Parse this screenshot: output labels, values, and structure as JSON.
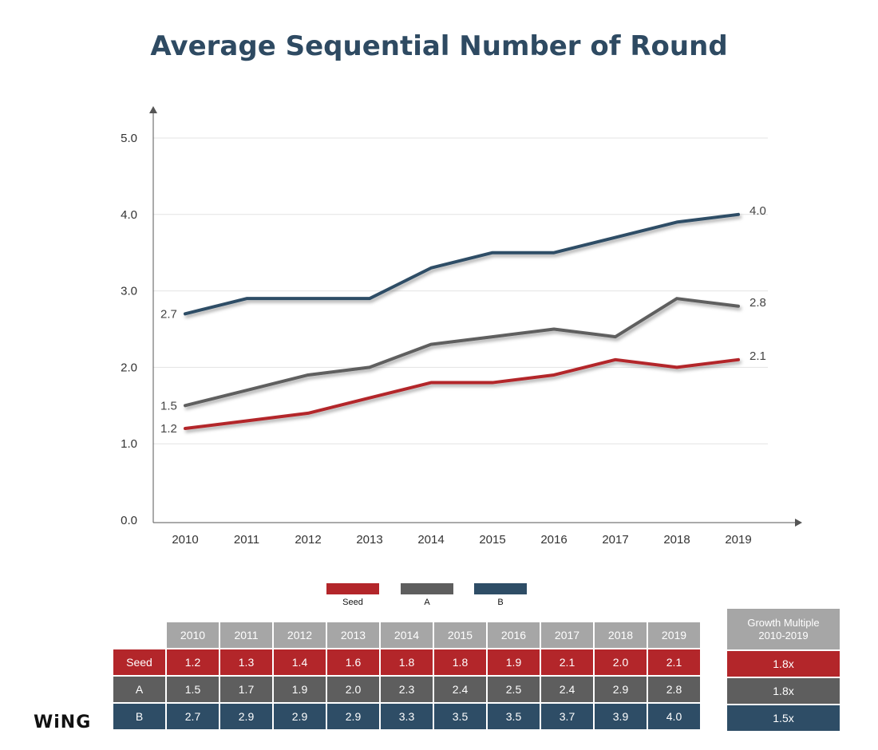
{
  "title": "Average Sequential Number of Round",
  "chart_data": {
    "type": "line",
    "title": "Average Sequential Number of Round",
    "x": [
      "2010",
      "2011",
      "2012",
      "2013",
      "2014",
      "2015",
      "2016",
      "2017",
      "2018",
      "2019"
    ],
    "y_ticks": [
      "0.0",
      "1.0",
      "2.0",
      "3.0",
      "4.0",
      "5.0"
    ],
    "ylim": [
      0,
      5
    ],
    "grid": true,
    "legend_position": "bottom",
    "series": [
      {
        "name": "Seed",
        "color": "#b3262a",
        "values": [
          1.2,
          1.3,
          1.4,
          1.6,
          1.8,
          1.8,
          1.9,
          2.1,
          2.0,
          2.1
        ],
        "start_label": "1.2",
        "end_label": "2.1"
      },
      {
        "name": "A",
        "color": "#5e5e5e",
        "values": [
          1.5,
          1.7,
          1.9,
          2.0,
          2.3,
          2.4,
          2.5,
          2.4,
          2.9,
          2.8
        ],
        "start_label": "1.5",
        "end_label": "2.8"
      },
      {
        "name": "B",
        "color": "#2e4d66",
        "values": [
          2.7,
          2.9,
          2.9,
          2.9,
          3.3,
          3.5,
          3.5,
          3.7,
          3.9,
          4.0
        ],
        "start_label": "2.7",
        "end_label": "4.0"
      }
    ]
  },
  "legend": [
    {
      "label": "Seed",
      "color": "#b3262a"
    },
    {
      "label": "A",
      "color": "#5e5e5e"
    },
    {
      "label": "B",
      "color": "#2e4d66"
    }
  ],
  "table": {
    "years": [
      "2010",
      "2011",
      "2012",
      "2013",
      "2014",
      "2015",
      "2016",
      "2017",
      "2018",
      "2019"
    ],
    "rows": [
      {
        "label": "Seed",
        "values": [
          "1.2",
          "1.3",
          "1.4",
          "1.6",
          "1.8",
          "1.8",
          "1.9",
          "2.1",
          "2.0",
          "2.1"
        ]
      },
      {
        "label": "A",
        "values": [
          "1.5",
          "1.7",
          "1.9",
          "2.0",
          "2.3",
          "2.4",
          "2.5",
          "2.4",
          "2.9",
          "2.8"
        ]
      },
      {
        "label": "B",
        "values": [
          "2.7",
          "2.9",
          "2.9",
          "2.9",
          "3.3",
          "3.5",
          "3.5",
          "3.7",
          "3.9",
          "4.0"
        ]
      }
    ]
  },
  "growth": {
    "header_line1": "Growth Multiple",
    "header_line2": "2010-2019",
    "values": [
      "1.8x",
      "1.8x",
      "1.5x"
    ]
  },
  "logo": "WiNG"
}
